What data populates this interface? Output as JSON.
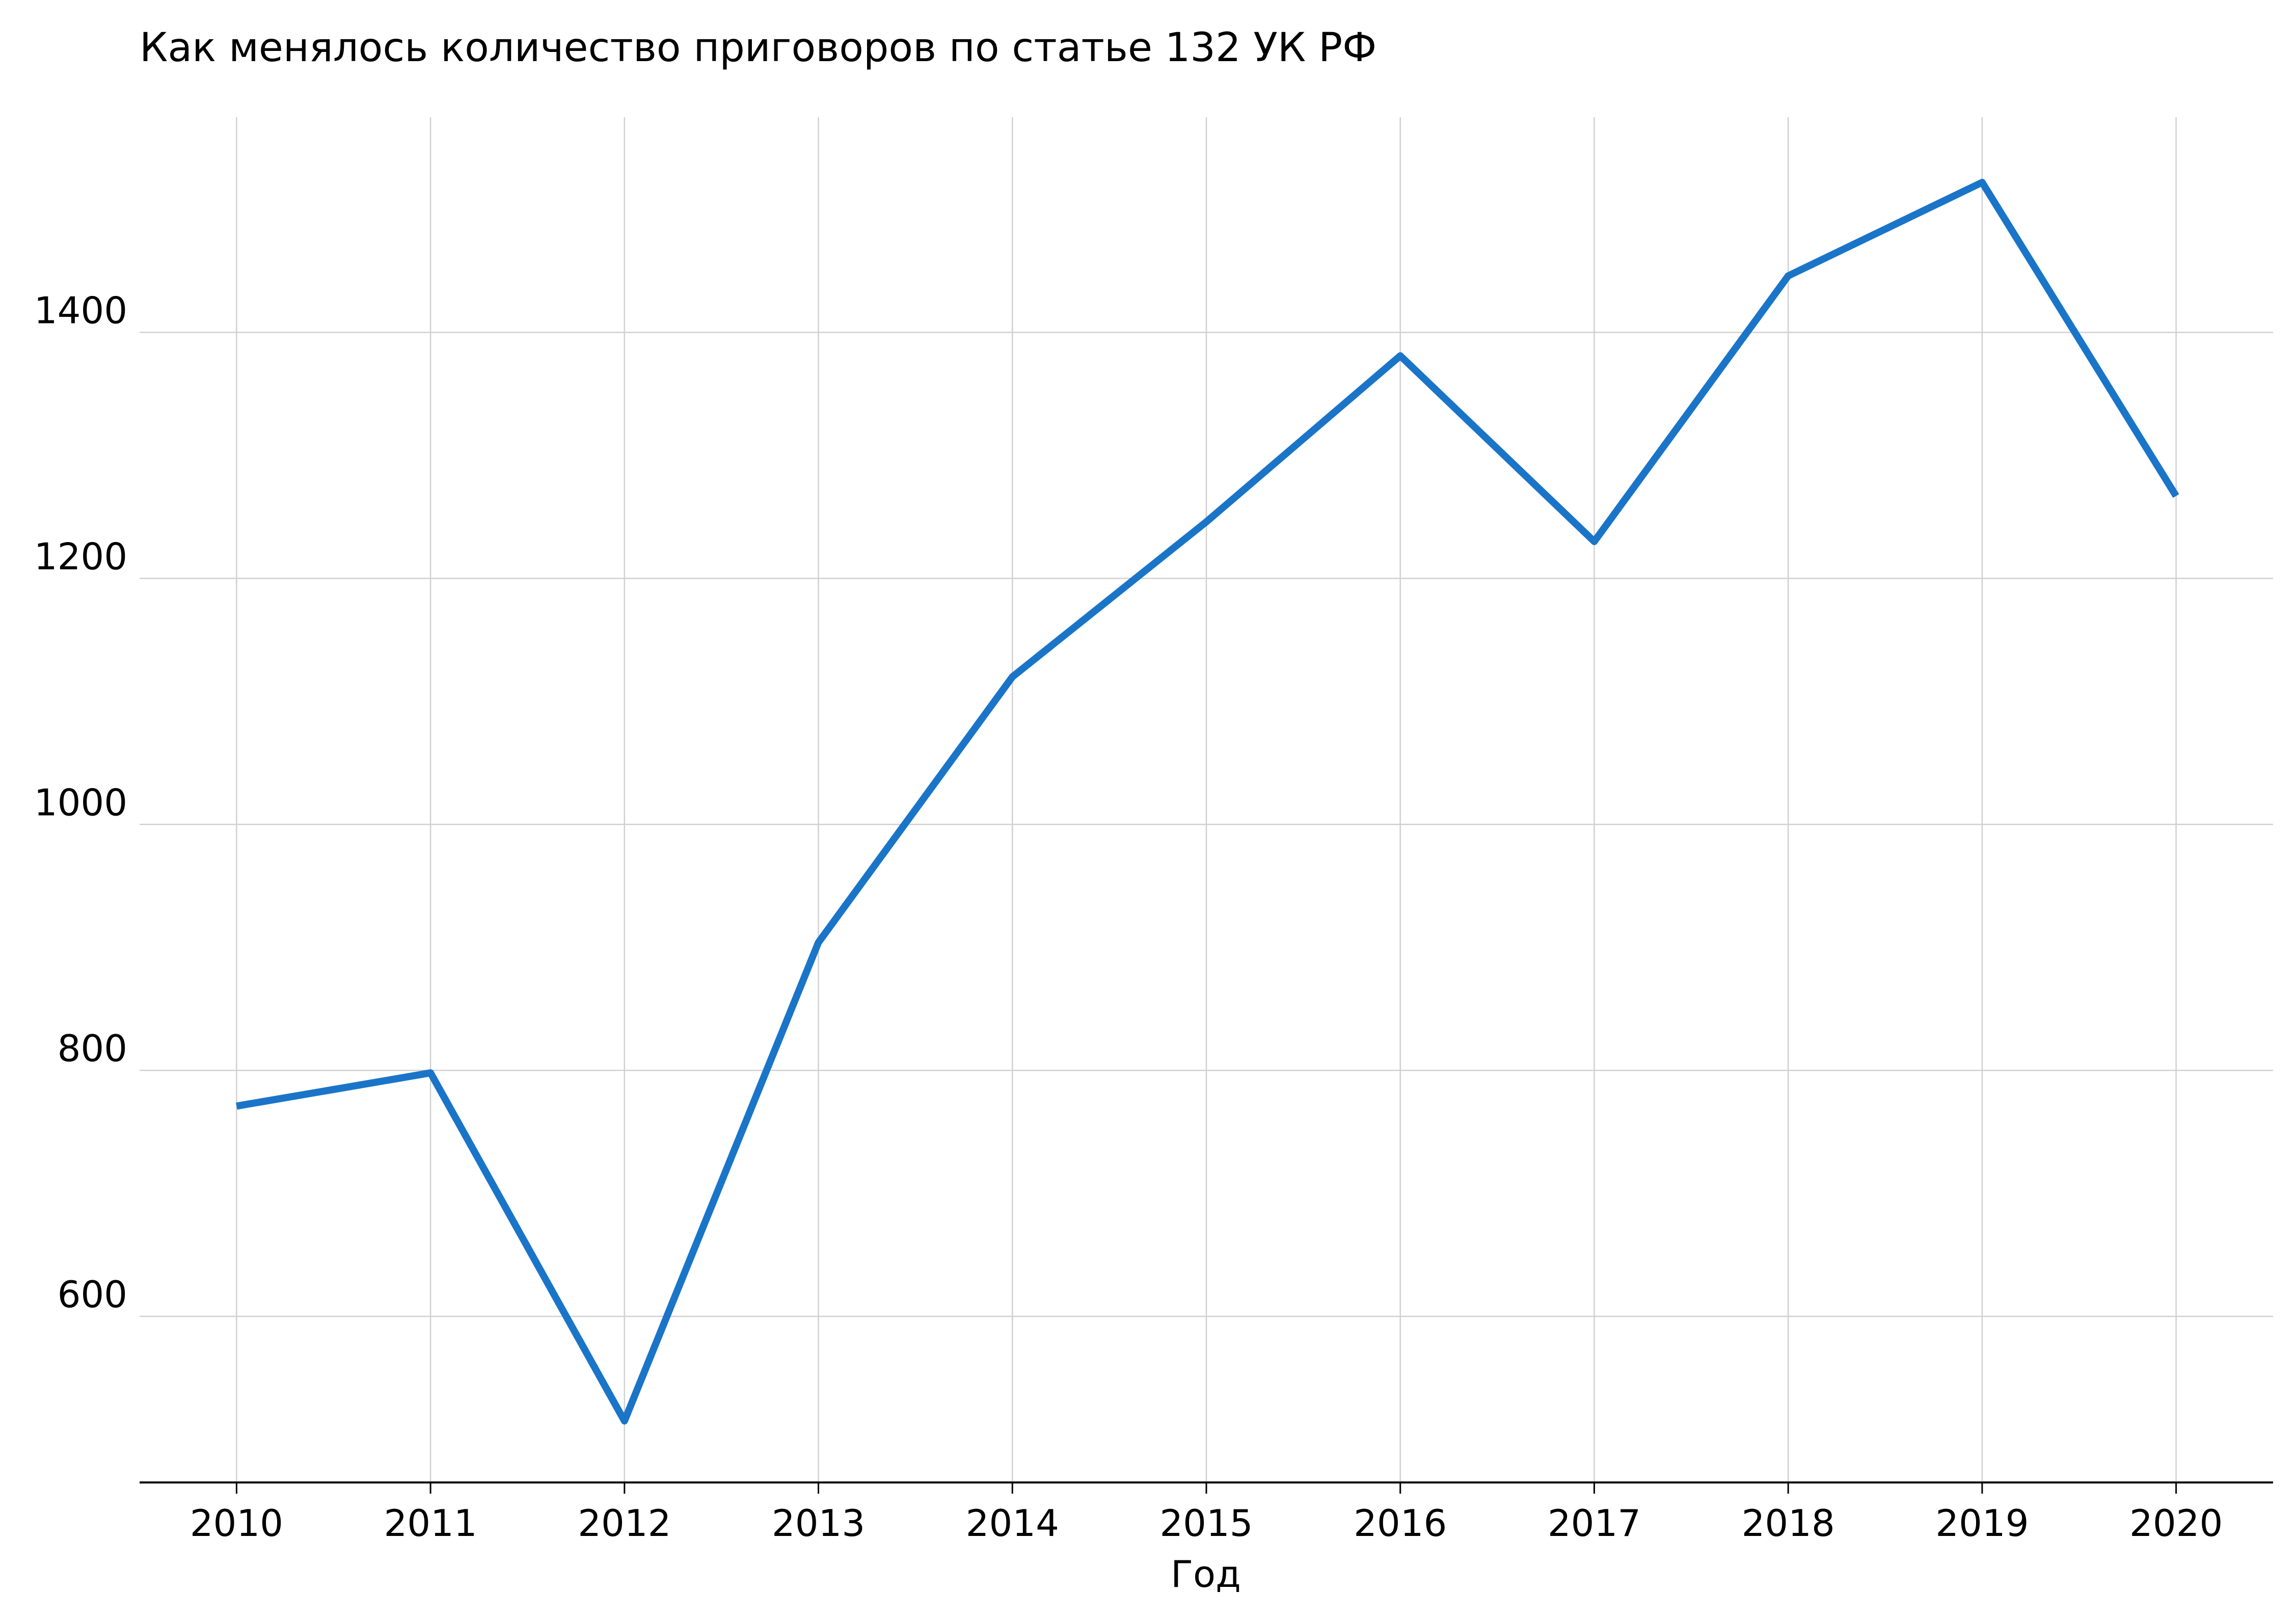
{
  "chart_data": {
    "type": "line",
    "title": "Как менялось количество приговоров по статье 132 УК РФ",
    "xlabel": "Год",
    "ylabel": "",
    "x": [
      2010,
      2011,
      2012,
      2013,
      2014,
      2015,
      2016,
      2017,
      2018,
      2019,
      2020
    ],
    "series": [
      {
        "values": [
          771,
          798,
          515,
          904,
          1120,
          1246,
          1381,
          1230,
          1446,
          1522,
          1267
        ]
      }
    ],
    "xlim": [
      2009.5,
      2020.5
    ],
    "ylim": [
      465,
      1575
    ],
    "y_ticks": [
      600,
      800,
      1000,
      1200,
      1400
    ],
    "grid": true,
    "colors": {
      "line": "#1a75c8",
      "grid": "#d0d0d0",
      "axis": "#000000"
    }
  }
}
